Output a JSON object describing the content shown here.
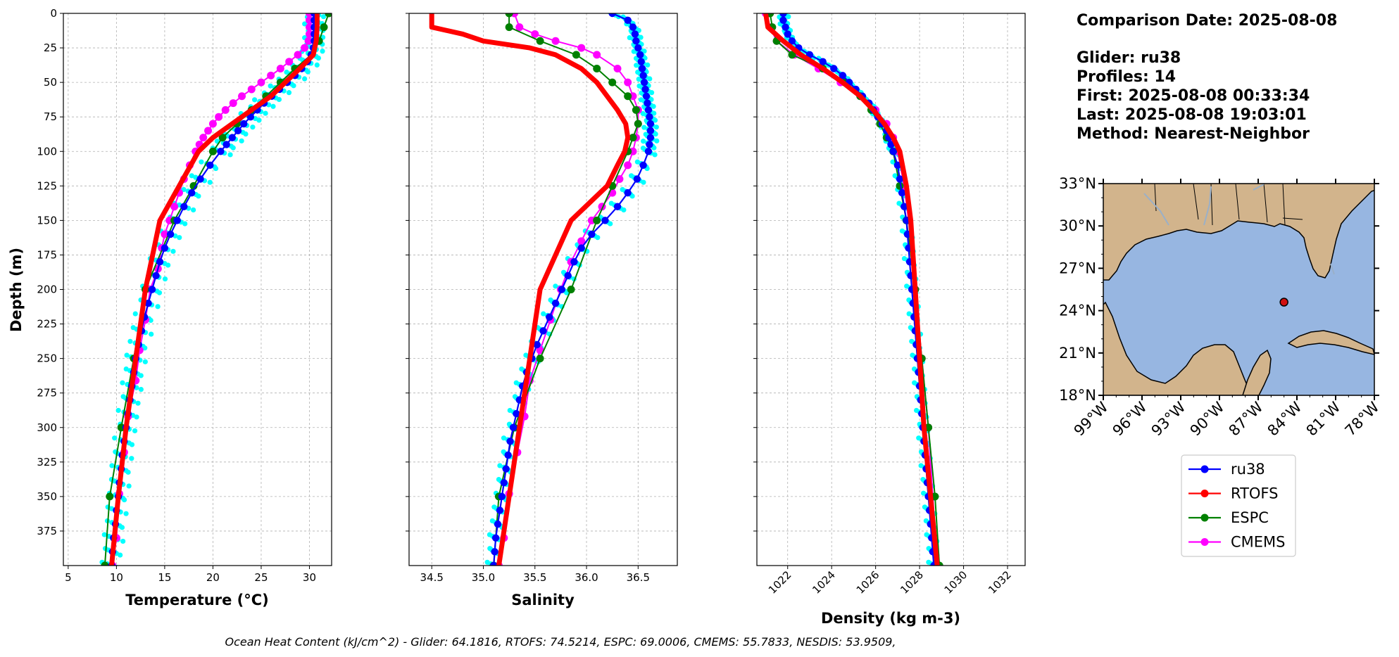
{
  "info": {
    "comparison_date": "Comparison Date: 2025-08-08",
    "glider": "Glider: ru38",
    "profiles": "Profiles: 14",
    "first": "First: 2025-08-08 00:33:34",
    "last": "Last: 2025-08-08 19:03:01",
    "method": "Method: Nearest-Neighbor"
  },
  "footer": "Ocean Heat Content (kJ/cm^2) - Glider: 64.1816,  RTOFS: 74.5214,  ESPC: 69.0006,  CMEMS: 55.7833,  NESDIS: 53.9509,",
  "colors": {
    "ru38": "#0000ff",
    "ru38_scatter": "#00ffff",
    "RTOFS": "#ff0000",
    "ESPC": "#008000",
    "CMEMS": "#ff00ff",
    "land": "#d2b48c",
    "ocean": "#97b6e1",
    "grid": "#b0b0b0"
  },
  "legend": [
    "ru38",
    "RTOFS",
    "ESPC",
    "CMEMS"
  ],
  "chart_data": [
    {
      "type": "line",
      "name": "temperature",
      "xlabel": "Temperature (°C)",
      "ylabel": "Depth (m)",
      "xlim": [
        4.5,
        32.3
      ],
      "ylim": [
        400,
        0
      ],
      "xticks": [
        5,
        10,
        15,
        20,
        25,
        30
      ],
      "yticks": [
        0,
        25,
        50,
        75,
        100,
        125,
        150,
        175,
        200,
        225,
        250,
        275,
        300,
        325,
        350,
        375
      ],
      "grid": true,
      "series": [
        {
          "name": "ru38",
          "depth": [
            0,
            5,
            10,
            15,
            20,
            25,
            30,
            35,
            40,
            45,
            50,
            55,
            60,
            65,
            70,
            75,
            80,
            85,
            90,
            95,
            100,
            110,
            120,
            130,
            140,
            150,
            160,
            170,
            180,
            190,
            200,
            210,
            220,
            230,
            240,
            250,
            260,
            270,
            280,
            290,
            300,
            310,
            320,
            330,
            340,
            350,
            360,
            370,
            380,
            390,
            400
          ],
          "values": [
            30.5,
            30.5,
            30.5,
            30.5,
            30.5,
            30.4,
            30.2,
            29.8,
            29.2,
            28.5,
            27.7,
            26.9,
            26.1,
            25.3,
            24.6,
            23.9,
            23.2,
            22.6,
            22.0,
            21.4,
            20.8,
            19.7,
            18.7,
            17.8,
            17.0,
            16.3,
            15.6,
            15.0,
            14.5,
            14.1,
            13.7,
            13.3,
            12.9,
            12.6,
            12.3,
            12.0,
            11.8,
            11.6,
            11.4,
            11.2,
            11.0,
            10.8,
            10.6,
            10.5,
            10.3,
            10.2,
            10.0,
            9.9,
            9.7,
            9.6,
            9.5
          ]
        },
        {
          "name": "RTOFS",
          "depth": [
            0,
            10,
            20,
            30,
            40,
            50,
            60,
            70,
            80,
            90,
            100,
            125,
            150,
            200,
            250,
            300,
            350,
            400
          ],
          "values": [
            30.8,
            30.8,
            30.7,
            30.4,
            29.0,
            27.5,
            26.0,
            24.0,
            22.0,
            20.0,
            18.5,
            16.5,
            14.5,
            13.0,
            12.0,
            11.0,
            10.2,
            9.5
          ]
        },
        {
          "name": "ESPC",
          "depth": [
            0,
            10,
            20,
            30,
            40,
            50,
            60,
            70,
            80,
            90,
            100,
            125,
            150,
            200,
            250,
            300,
            350,
            400
          ],
          "values": [
            32.0,
            31.5,
            31.0,
            30.2,
            28.5,
            27.0,
            25.5,
            24.0,
            22.5,
            21.0,
            20.0,
            18.0,
            16.0,
            13.0,
            11.8,
            10.5,
            9.3,
            8.8
          ]
        },
        {
          "name": "CMEMS",
          "depth": [
            0,
            5,
            10,
            15,
            20,
            25,
            30,
            35,
            40,
            45,
            50,
            55,
            60,
            65,
            70,
            75,
            80,
            85,
            90,
            95,
            100,
            110,
            120,
            130,
            140,
            150,
            160,
            170,
            185,
            200,
            222,
            244,
            266,
            292,
            318,
            348,
            380,
            400
          ],
          "values": [
            30.0,
            30.0,
            30.0,
            30.0,
            29.9,
            29.5,
            28.8,
            27.9,
            27.0,
            26.0,
            25.0,
            24.0,
            23.0,
            22.1,
            21.3,
            20.6,
            20.0,
            19.5,
            19.0,
            18.6,
            18.2,
            17.6,
            17.0,
            16.5,
            16.0,
            15.5,
            15.0,
            14.7,
            14.3,
            13.5,
            13.0,
            12.4,
            12.0,
            11.2,
            10.8,
            10.3,
            10.0,
            9.6
          ]
        }
      ]
    },
    {
      "type": "line",
      "name": "salinity",
      "xlabel": "Salinity",
      "ylim": [
        400,
        0
      ],
      "xlim": [
        34.28,
        36.88
      ],
      "xticks": [
        34.5,
        35.0,
        35.5,
        36.0,
        36.5
      ],
      "grid": true,
      "series": [
        {
          "name": "ru38",
          "depth": [
            0,
            5,
            10,
            15,
            20,
            25,
            30,
            35,
            40,
            45,
            50,
            55,
            60,
            65,
            70,
            75,
            80,
            85,
            90,
            95,
            100,
            110,
            120,
            130,
            140,
            150,
            160,
            170,
            180,
            190,
            200,
            210,
            220,
            230,
            240,
            250,
            260,
            270,
            280,
            290,
            300,
            310,
            320,
            330,
            340,
            350,
            360,
            370,
            380,
            390,
            400
          ],
          "values": [
            36.25,
            36.4,
            36.45,
            36.47,
            36.48,
            36.5,
            36.52,
            36.53,
            36.54,
            36.55,
            36.56,
            36.57,
            36.58,
            36.59,
            36.6,
            36.61,
            36.62,
            36.62,
            36.62,
            36.61,
            36.6,
            36.55,
            36.49,
            36.4,
            36.3,
            36.18,
            36.05,
            35.95,
            35.88,
            35.82,
            35.76,
            35.7,
            35.64,
            35.58,
            35.52,
            35.47,
            35.42,
            35.38,
            35.35,
            35.32,
            35.29,
            35.26,
            35.24,
            35.22,
            35.2,
            35.18,
            35.16,
            35.14,
            35.12,
            35.11,
            35.1
          ]
        },
        {
          "name": "RTOFS",
          "depth": [
            0,
            5,
            10,
            15,
            20,
            25,
            30,
            40,
            50,
            60,
            70,
            80,
            90,
            100,
            110,
            125,
            150,
            200,
            250,
            300,
            350,
            400
          ],
          "values": [
            34.5,
            34.5,
            34.5,
            34.8,
            35.0,
            35.45,
            35.7,
            35.95,
            36.1,
            36.2,
            36.3,
            36.38,
            36.4,
            36.37,
            36.3,
            36.2,
            35.85,
            35.55,
            35.45,
            35.35,
            35.25,
            35.15
          ]
        },
        {
          "name": "ESPC",
          "depth": [
            0,
            10,
            20,
            30,
            40,
            50,
            60,
            70,
            80,
            90,
            100,
            125,
            150,
            200,
            250,
            300,
            350,
            400
          ],
          "values": [
            35.25,
            35.25,
            35.55,
            35.9,
            36.1,
            36.25,
            36.4,
            36.48,
            36.5,
            36.45,
            36.4,
            36.25,
            36.1,
            35.85,
            35.55,
            35.3,
            35.15,
            35.1
          ]
        },
        {
          "name": "CMEMS",
          "depth": [
            0,
            10,
            15,
            20,
            25,
            30,
            40,
            50,
            60,
            70,
            80,
            90,
            100,
            110,
            120,
            130,
            140,
            150,
            165,
            180,
            200,
            222,
            244,
            266,
            292,
            318,
            348,
            380,
            400
          ],
          "values": [
            35.3,
            35.35,
            35.5,
            35.7,
            35.95,
            36.1,
            36.3,
            36.4,
            36.45,
            36.5,
            36.5,
            36.48,
            36.45,
            36.4,
            36.32,
            36.25,
            36.15,
            36.05,
            35.95,
            35.85,
            35.75,
            35.65,
            35.55,
            35.45,
            35.4,
            35.33,
            35.25,
            35.2,
            35.15
          ]
        }
      ]
    },
    {
      "type": "line",
      "name": "density",
      "xlabel": "Density (kg m-3)",
      "ylim": [
        400,
        0
      ],
      "xlim": [
        1020.6,
        1032.8
      ],
      "xticks": [
        1022,
        1024,
        1026,
        1028,
        1030,
        1032
      ],
      "grid": true,
      "series": [
        {
          "name": "ru38",
          "depth": [
            0,
            5,
            10,
            15,
            20,
            25,
            30,
            35,
            40,
            45,
            50,
            55,
            60,
            65,
            70,
            75,
            80,
            85,
            90,
            95,
            100,
            110,
            120,
            130,
            140,
            150,
            160,
            170,
            180,
            190,
            200,
            210,
            220,
            230,
            240,
            250,
            260,
            270,
            280,
            290,
            300,
            310,
            320,
            330,
            340,
            350,
            360,
            370,
            380,
            390,
            400
          ],
          "values": [
            1021.8,
            1021.8,
            1021.9,
            1022.0,
            1022.2,
            1022.5,
            1023.0,
            1023.6,
            1024.1,
            1024.5,
            1024.8,
            1025.1,
            1025.4,
            1025.7,
            1025.9,
            1026.1,
            1026.3,
            1026.5,
            1026.6,
            1026.7,
            1026.8,
            1027.0,
            1027.1,
            1027.2,
            1027.3,
            1027.4,
            1027.45,
            1027.5,
            1027.55,
            1027.6,
            1027.65,
            1027.7,
            1027.75,
            1027.8,
            1027.85,
            1027.9,
            1027.95,
            1028.0,
            1028.05,
            1028.1,
            1028.15,
            1028.2,
            1028.25,
            1028.3,
            1028.35,
            1028.4,
            1028.45,
            1028.5,
            1028.55,
            1028.6,
            1028.65
          ]
        },
        {
          "name": "RTOFS",
          "depth": [
            0,
            10,
            20,
            30,
            40,
            50,
            60,
            70,
            80,
            90,
            100,
            125,
            150,
            200,
            250,
            300,
            350,
            400
          ],
          "values": [
            1021.0,
            1021.1,
            1021.8,
            1022.6,
            1023.6,
            1024.5,
            1025.3,
            1025.9,
            1026.4,
            1026.8,
            1027.1,
            1027.4,
            1027.6,
            1027.8,
            1028.0,
            1028.2,
            1028.5,
            1028.8
          ]
        },
        {
          "name": "ESPC",
          "depth": [
            0,
            10,
            20,
            30,
            40,
            50,
            60,
            70,
            80,
            90,
            100,
            125,
            150,
            200,
            250,
            300,
            350,
            400
          ],
          "values": [
            1021.2,
            1021.3,
            1021.5,
            1022.2,
            1023.6,
            1024.6,
            1025.3,
            1025.8,
            1026.2,
            1026.5,
            1026.8,
            1027.1,
            1027.4,
            1027.8,
            1028.1,
            1028.4,
            1028.7,
            1028.9
          ]
        },
        {
          "name": "CMEMS",
          "depth": [
            0,
            10,
            20,
            30,
            40,
            50,
            60,
            70,
            80,
            90,
            100,
            125,
            150,
            200,
            250,
            300,
            350,
            400
          ],
          "values": [
            1021.0,
            1021.2,
            1021.5,
            1022.3,
            1023.4,
            1024.4,
            1025.3,
            1026.0,
            1026.5,
            1026.8,
            1027.0,
            1027.3,
            1027.5,
            1027.8,
            1028.1,
            1028.4,
            1028.6,
            1028.8
          ]
        }
      ]
    },
    {
      "type": "map",
      "name": "location",
      "lon_ticks": [
        "99°W",
        "96°W",
        "93°W",
        "90°W",
        "87°W",
        "84°W",
        "81°W",
        "78°W"
      ],
      "lat_ticks": [
        "33°N",
        "30°N",
        "27°N",
        "24°N",
        "21°N",
        "18°N"
      ],
      "lon_range": [
        -99,
        -78
      ],
      "lat_range": [
        18,
        33
      ],
      "marker": {
        "lon": -85.0,
        "lat": 24.6
      }
    }
  ]
}
